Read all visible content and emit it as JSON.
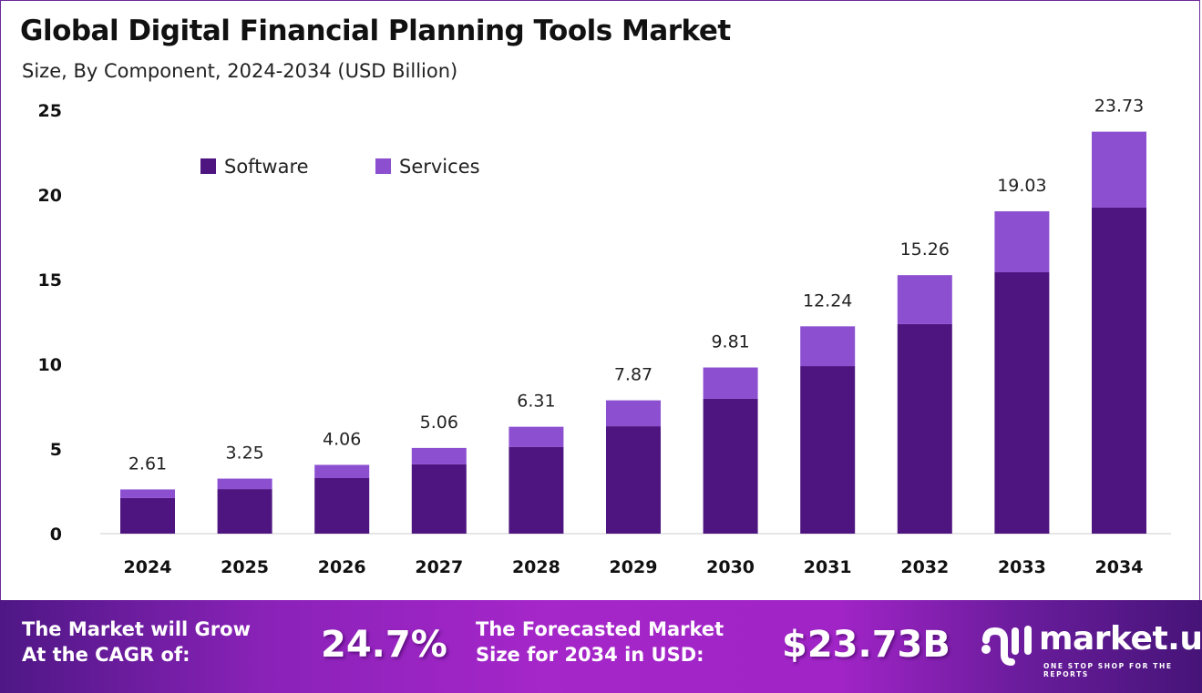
{
  "chart_data": {
    "type": "bar",
    "stacked": true,
    "title": "Global Digital Financial Planning Tools Market",
    "subtitle": "Size, By Component, 2024-2034 (USD Billion)",
    "categories": [
      "2024",
      "2025",
      "2026",
      "2027",
      "2028",
      "2029",
      "2030",
      "2031",
      "2032",
      "2033",
      "2034"
    ],
    "series": [
      {
        "name": "Software",
        "color": "#4e1580",
        "values": [
          2.1,
          2.63,
          3.28,
          4.09,
          5.11,
          6.34,
          7.96,
          9.89,
          12.37,
          15.43,
          19.25
        ]
      },
      {
        "name": "Services",
        "color": "#8c4fd0",
        "values": [
          0.51,
          0.62,
          0.78,
          0.97,
          1.2,
          1.53,
          1.85,
          2.35,
          2.89,
          3.6,
          4.48
        ]
      }
    ],
    "totals": [
      "2.61",
      "3.25",
      "4.06",
      "5.06",
      "6.31",
      "7.87",
      "9.81",
      "12.24",
      "15.26",
      "19.03",
      "23.73"
    ],
    "yticks": [
      "0",
      "5",
      "10",
      "15",
      "20",
      "25"
    ],
    "ylim": [
      0,
      25
    ],
    "grid": false,
    "legend_position": "top-left"
  },
  "banner": {
    "cagr_label_line1": "The Market will Grow",
    "cagr_label_line2": "At the CAGR of:",
    "cagr_value": "24.7%",
    "forecast_label_line1": "The Forecasted Market",
    "forecast_label_line2": "Size for 2034 in USD:",
    "forecast_value": "$23.73B",
    "logo_name": "market.us",
    "logo_tagline": "ONE STOP SHOP FOR THE REPORTS"
  }
}
